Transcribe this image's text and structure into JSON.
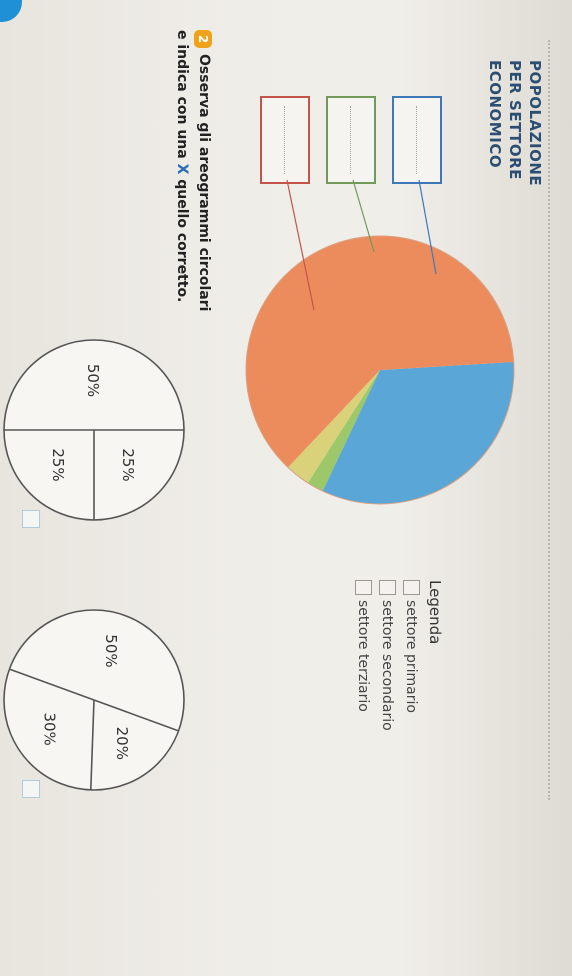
{
  "heading": {
    "lines": [
      "POPOLAZIONE",
      "PER SETTORE",
      "ECONOMICO"
    ]
  },
  "legend": {
    "title": "Legenda",
    "items": [
      "settore primario",
      "settore secondario",
      "settore terziario"
    ]
  },
  "exercise": {
    "number": "2",
    "line1": "Osserva gli areogrammi circolari",
    "line2_before": "e indica con una ",
    "line2_mark": "X",
    "line2_after": " quello corretto."
  },
  "chart_data": [
    {
      "type": "pie",
      "title": "",
      "slices": [
        {
          "color": "#5aa6d6",
          "value": 33
        },
        {
          "color": "#9cc86a",
          "value": 2
        },
        {
          "color": "#d9d27a",
          "value": 3
        },
        {
          "color": "#ec8c5c",
          "value": 62
        }
      ]
    },
    {
      "type": "pie",
      "slices": [
        {
          "label": "25%",
          "value": 25
        },
        {
          "label": "25%",
          "value": 25
        },
        {
          "label": "50%",
          "value": 50
        }
      ]
    },
    {
      "type": "pie",
      "slices": [
        {
          "label": "20%",
          "value": 20
        },
        {
          "label": "30%",
          "value": 30
        },
        {
          "label": "50%",
          "value": 50
        }
      ]
    }
  ],
  "colors": {
    "primary_box": "#3f78b8",
    "secondary_box": "#6f9a58",
    "tertiary_box": "#c4544a"
  }
}
